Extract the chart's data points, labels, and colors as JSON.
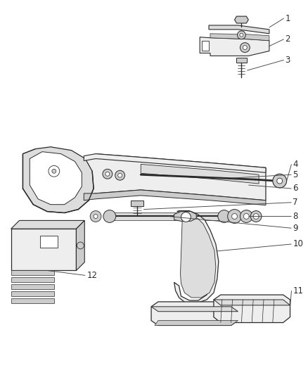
{
  "bg_color": "#ffffff",
  "line_color": "#2a2a2a",
  "label_color": "#2a2a2a",
  "lw_main": 0.9,
  "lw_thin": 0.6,
  "fc_light": "#eeeeee",
  "fc_mid": "#dddddd",
  "fc_dark": "#cccccc"
}
